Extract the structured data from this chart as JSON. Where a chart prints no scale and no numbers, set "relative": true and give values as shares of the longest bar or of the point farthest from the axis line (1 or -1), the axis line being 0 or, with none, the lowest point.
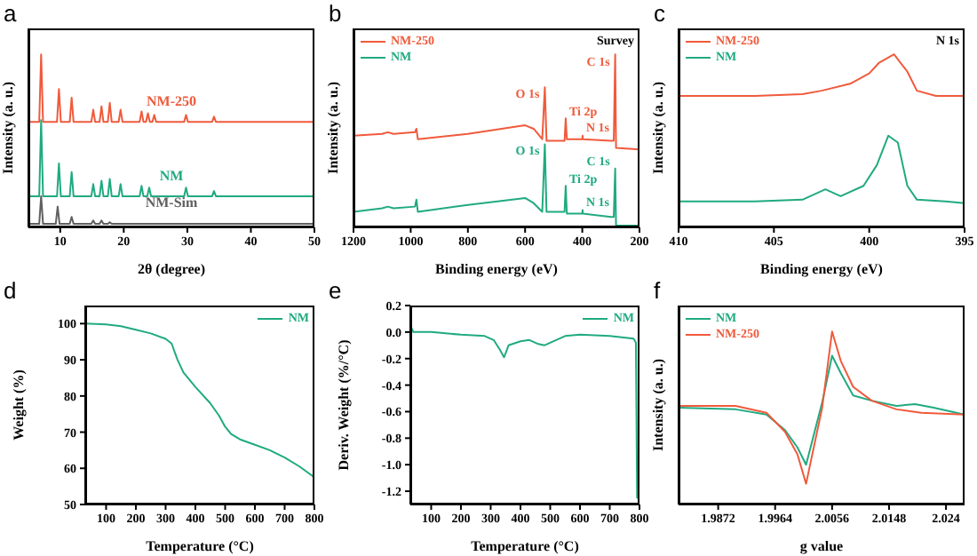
{
  "chart_data": [
    {
      "type": "line",
      "title": "a",
      "xlabel": "2θ (degree)",
      "ylabel": "Intensity (a. u.)",
      "relative": true,
      "legend": false,
      "xlim": [
        5,
        50
      ],
      "xticks": [
        10,
        20,
        30,
        40,
        50
      ],
      "series": [
        {
          "name": "NM-250",
          "color": "#f05a3c",
          "x": [
            5,
            6.7,
            7,
            7.3,
            9.5,
            9.8,
            10.1,
            11.5,
            11.8,
            12.1,
            14.9,
            15.2,
            15.5,
            16.2,
            16.5,
            16.8,
            17.5,
            17.8,
            18.1,
            19.2,
            19.5,
            19.8,
            22.5,
            22.8,
            23.1,
            23.5,
            23.8,
            24.1,
            24.5,
            24.8,
            25.1,
            29.5,
            29.8,
            30.1,
            33.9,
            34.2,
            34.5,
            50
          ],
          "values": [
            0.61,
            0.61,
            1.0,
            0.61,
            0.61,
            0.8,
            0.61,
            0.61,
            0.75,
            0.61,
            0.61,
            0.68,
            0.61,
            0.61,
            0.7,
            0.61,
            0.61,
            0.72,
            0.61,
            0.61,
            0.68,
            0.61,
            0.61,
            0.67,
            0.61,
            0.61,
            0.66,
            0.61,
            0.61,
            0.65,
            0.61,
            0.61,
            0.65,
            0.61,
            0.61,
            0.64,
            0.61,
            0.61
          ]
        },
        {
          "name": "NM",
          "color": "#20aa80",
          "x": [
            5,
            6.7,
            7,
            7.3,
            9.5,
            9.8,
            10.1,
            11.5,
            11.8,
            12.1,
            14.9,
            15.2,
            15.5,
            16.2,
            16.5,
            16.8,
            17.5,
            17.8,
            18.1,
            19.2,
            19.5,
            19.8,
            22.5,
            22.8,
            23.1,
            23.7,
            24,
            24.3,
            29.5,
            29.8,
            30.1,
            33.9,
            34.2,
            34.5,
            50
          ],
          "values": [
            0.18,
            0.18,
            0.62,
            0.18,
            0.18,
            0.37,
            0.18,
            0.18,
            0.32,
            0.18,
            0.18,
            0.25,
            0.18,
            0.18,
            0.27,
            0.18,
            0.18,
            0.28,
            0.18,
            0.18,
            0.25,
            0.18,
            0.18,
            0.24,
            0.18,
            0.18,
            0.23,
            0.18,
            0.18,
            0.23,
            0.18,
            0.18,
            0.21,
            0.18,
            0.18
          ]
        },
        {
          "name": "NM-Sim",
          "color": "#606060",
          "x": [
            5,
            6.7,
            7,
            7.3,
            9.3,
            9.6,
            9.9,
            11.5,
            11.8,
            12.1,
            14.9,
            15.2,
            15.5,
            16.2,
            16.5,
            16.8,
            17.5,
            17.8,
            18.1,
            50
          ],
          "values": [
            0.02,
            0.02,
            0.18,
            0.02,
            0.02,
            0.12,
            0.02,
            0.02,
            0.06,
            0.02,
            0.02,
            0.04,
            0.02,
            0.02,
            0.04,
            0.02,
            0.02,
            0.03,
            0.02,
            0.02
          ]
        }
      ]
    },
    {
      "type": "line",
      "title": "b",
      "xlabel": "Binding energy (eV)",
      "ylabel": "Intensity (a. u.)",
      "relative": true,
      "legend": "top left",
      "xlim": [
        1200,
        200
      ],
      "xticks": [
        1200,
        1000,
        800,
        600,
        400,
        200
      ],
      "annotations": [
        "Survey",
        {
          "text": "O 1s",
          "x": 531,
          "y": 0.81
        },
        {
          "text": "Ti 2p",
          "x": 458,
          "y": 0.63
        },
        {
          "text": "N 1s",
          "x": 399,
          "y": 0.53
        },
        {
          "text": "C 1s",
          "x": 285,
          "y": 1.0
        },
        {
          "text": "O 1s",
          "x": 531,
          "y": 0.48
        },
        {
          "text": "Ti 2p",
          "x": 458,
          "y": 0.24
        },
        {
          "text": "N 1s",
          "x": 399,
          "y": 0.1
        },
        {
          "text": "C 1s",
          "x": 285,
          "y": 0.34
        }
      ],
      "series": [
        {
          "name": "NM-250",
          "color": "#f05a3c",
          "x": [
            1200,
            1100,
            1080,
            1060,
            985,
            980,
            975,
            800,
            600,
            570,
            540,
            531,
            525,
            462,
            458,
            454,
            400,
            399,
            398,
            300,
            290,
            285,
            282,
            200
          ],
          "values": [
            0.53,
            0.54,
            0.55,
            0.54,
            0.55,
            0.57,
            0.51,
            0.54,
            0.59,
            0.57,
            0.51,
            0.81,
            0.5,
            0.5,
            0.63,
            0.51,
            0.51,
            0.53,
            0.51,
            0.5,
            0.5,
            1.0,
            0.46,
            0.45
          ]
        },
        {
          "name": "NM",
          "color": "#20aa80",
          "x": [
            1200,
            1100,
            1080,
            1060,
            985,
            980,
            975,
            800,
            600,
            570,
            540,
            531,
            525,
            462,
            458,
            454,
            400,
            399,
            398,
            300,
            290,
            285,
            282,
            200
          ],
          "values": [
            0.09,
            0.11,
            0.12,
            0.11,
            0.12,
            0.16,
            0.09,
            0.13,
            0.17,
            0.14,
            0.09,
            0.48,
            0.09,
            0.09,
            0.24,
            0.08,
            0.08,
            0.1,
            0.08,
            0.06,
            0.06,
            0.34,
            0.01,
            0.01
          ]
        }
      ]
    },
    {
      "type": "line",
      "title": "c",
      "xlabel": "Binding energy (eV)",
      "ylabel": "Intensity (a. u.)",
      "relative": true,
      "legend": "top left",
      "xlim": [
        410,
        395
      ],
      "xticks": [
        410,
        405,
        400,
        395
      ],
      "annotations": [
        "N 1s"
      ],
      "series": [
        {
          "name": "NM-250",
          "color": "#f05a3c",
          "x": [
            410,
            406,
            403.5,
            402.5,
            401,
            400,
            399.5,
            398.7,
            398,
            397.5,
            396.5,
            395
          ],
          "values": [
            0.76,
            0.76,
            0.77,
            0.79,
            0.83,
            0.89,
            0.95,
            1.0,
            0.9,
            0.79,
            0.76,
            0.76
          ]
        },
        {
          "name": "NM",
          "color": "#20aa80",
          "x": [
            410,
            406,
            403.5,
            402.3,
            401.5,
            400.3,
            399.6,
            399,
            398.5,
            398,
            397.5,
            396,
            395
          ],
          "values": [
            0.15,
            0.15,
            0.16,
            0.22,
            0.18,
            0.24,
            0.36,
            0.53,
            0.49,
            0.24,
            0.16,
            0.15,
            0.14
          ]
        }
      ]
    },
    {
      "type": "line",
      "title": "d",
      "xlabel": "Temperature (°C)",
      "ylabel": "Weight (%)",
      "legend": "top right",
      "xlim": [
        30,
        800
      ],
      "xticks": [
        100,
        200,
        300,
        400,
        500,
        600,
        700,
        800
      ],
      "ylim": [
        50,
        105
      ],
      "yticks": [
        50,
        60,
        70,
        80,
        90,
        100
      ],
      "series": [
        {
          "name": "NM",
          "color": "#20aa80",
          "x": [
            30,
            100,
            150,
            200,
            250,
            300,
            320,
            340,
            360,
            400,
            450,
            480,
            500,
            520,
            550,
            600,
            650,
            700,
            750,
            800
          ],
          "values": [
            100,
            99.8,
            99.3,
            98.3,
            97.3,
            95.8,
            94.5,
            90,
            86.5,
            82.5,
            78,
            74.5,
            71.5,
            69.5,
            68,
            66.5,
            65,
            63,
            60.5,
            57.5
          ]
        }
      ]
    },
    {
      "type": "line",
      "title": "e",
      "xlabel": "Temperature (°C)",
      "ylabel": "Deriv. Weight (%/°C)",
      "legend": "top right",
      "xlim": [
        30,
        800
      ],
      "xticks": [
        100,
        200,
        300,
        400,
        500,
        600,
        700,
        800
      ],
      "ylim": [
        -1.3,
        0.2
      ],
      "yticks": [
        0.2,
        {
          "value": 0,
          "label": "0.0"
        },
        -0.2,
        -0.4,
        -0.6,
        -0.8,
        {
          "value": -1,
          "label": "-1.0"
        },
        -1.2
      ],
      "series": [
        {
          "name": "NM",
          "color": "#20aa80",
          "x": [
            30,
            40,
            100,
            200,
            280,
            310,
            330,
            345,
            360,
            400,
            430,
            460,
            480,
            510,
            550,
            600,
            700,
            780,
            788,
            792
          ],
          "values": [
            0.05,
            0,
            0,
            -0.02,
            -0.03,
            -0.06,
            -0.13,
            -0.19,
            -0.1,
            -0.07,
            -0.06,
            -0.09,
            -0.1,
            -0.07,
            -0.03,
            -0.02,
            -0.03,
            -0.05,
            -0.08,
            -1.25
          ]
        }
      ]
    },
    {
      "type": "line",
      "title": "f",
      "xlabel": "g value",
      "ylabel": "Intensity (a. u.)",
      "relative": true,
      "legend": "top left",
      "xlim": [
        1.9808,
        2.027
      ],
      "xticks": [
        1.9872,
        1.9964,
        2.0056,
        2.0148,
        2.024
      ],
      "series": [
        {
          "name": "NM",
          "color": "#20aa80",
          "x": [
            1.9808,
            1.99,
            1.995,
            1.998,
            2.0,
            2.0014,
            2.004,
            2.0056,
            2.007,
            2.009,
            2.012,
            2.016,
            2.019,
            2.022,
            2.027
          ],
          "values": [
            0.56,
            0.55,
            0.52,
            0.43,
            0.33,
            0.23,
            0.59,
            0.86,
            0.76,
            0.63,
            0.6,
            0.57,
            0.58,
            0.56,
            0.52
          ]
        },
        {
          "name": "NM-250",
          "color": "#f05a3c",
          "x": [
            1.9808,
            1.99,
            1.995,
            1.998,
            2.0,
            2.0014,
            2.004,
            2.0056,
            2.007,
            2.009,
            2.012,
            2.016,
            2.02,
            2.027
          ],
          "values": [
            0.57,
            0.57,
            0.53,
            0.42,
            0.29,
            0.12,
            0.56,
            1.0,
            0.83,
            0.68,
            0.6,
            0.55,
            0.53,
            0.52
          ]
        }
      ]
    }
  ]
}
